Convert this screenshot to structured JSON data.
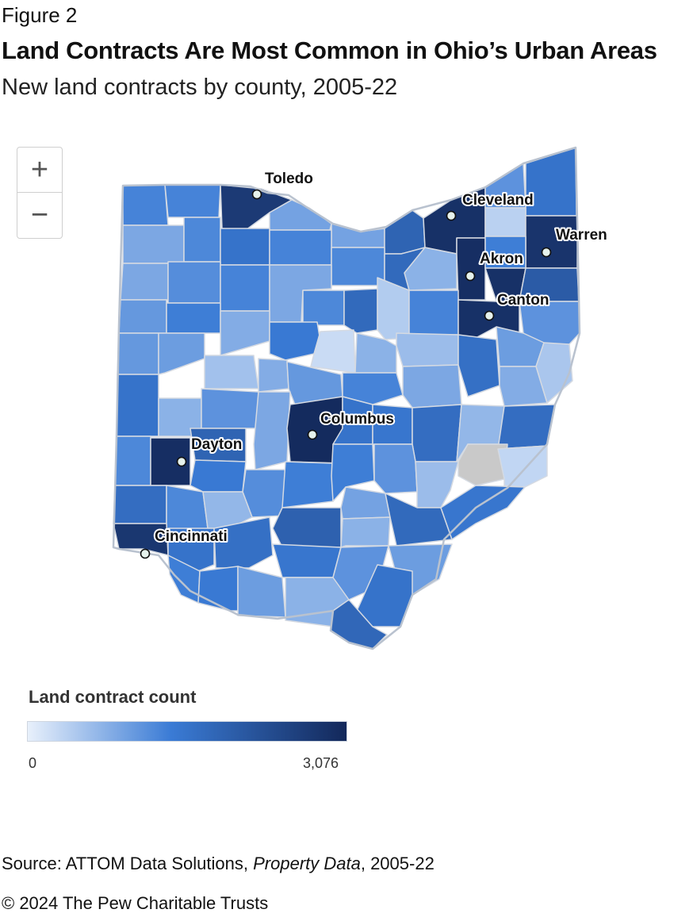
{
  "figure_label": "Figure 2",
  "title": "Land Contracts Are Most Common in Ohio’s Urban Areas",
  "subtitle": "New land contracts by county, 2005-22",
  "zoom_controls": {
    "zoom_in": "+",
    "zoom_out": "−"
  },
  "cities": [
    {
      "name": "Toledo"
    },
    {
      "name": "Cleveland"
    },
    {
      "name": "Warren"
    },
    {
      "name": "Akron"
    },
    {
      "name": "Canton"
    },
    {
      "name": "Columbus"
    },
    {
      "name": "Dayton"
    },
    {
      "name": "Cincinnati"
    }
  ],
  "legend": {
    "title": "Land contract count",
    "min_label": "0",
    "max_label": "3,076",
    "min_value": 0,
    "max_value": 3076,
    "color_low": "#e8f0fb",
    "color_mid": "#3a7bd5",
    "color_high": "#13285a"
  },
  "colors": {
    "no_data": "#c9c9c9",
    "county_border": "#d5dae2",
    "state_border": "#b9c2cf"
  },
  "source": {
    "prefix": "Source: ATTOM Data Solutions, ",
    "italic": "Property Data",
    "suffix": ", 2005-22"
  },
  "copyright": "© 2024 The Pew Charitable Trusts"
}
